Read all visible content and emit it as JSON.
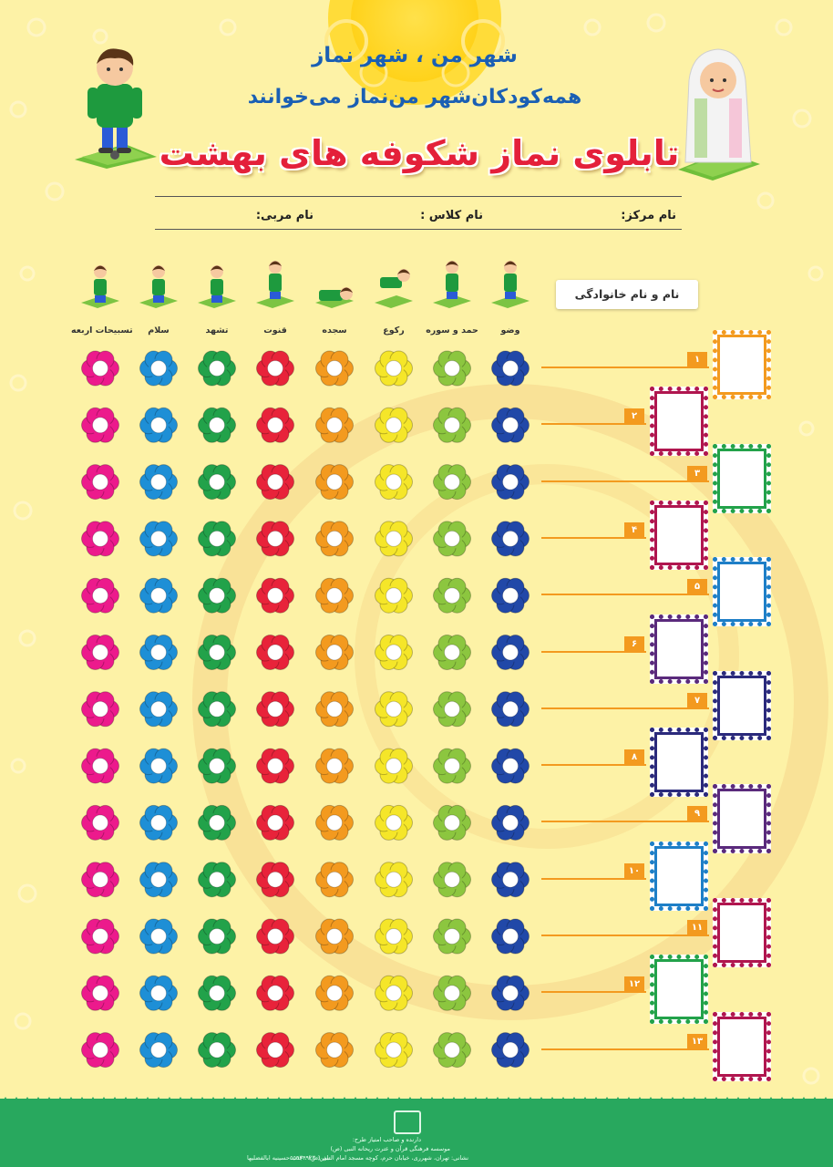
{
  "header": {
    "line1": "شهر من ، شهر نماز",
    "line2": "همه‌کودکان‌شهر من‌نماز می‌خوانند",
    "title": "تابلوی نماز شکوفه های بهشت"
  },
  "fields": {
    "center": "نام مرکز:",
    "class": "نام کلاس :",
    "teacher": "نام مربی:"
  },
  "name_column_header": "نام و نام خانوادگی",
  "prayer_steps": [
    "وضو",
    "حمد و سوره",
    "رکوع",
    "سجده",
    "قنوت",
    "تشهد",
    "سلام",
    "تسبیحات اربعه"
  ],
  "flower_colors": [
    "#2148a8",
    "#8cc63f",
    "#f5e629",
    "#f39a1f",
    "#e8233a",
    "#22a24a",
    "#1e8fd6",
    "#ec1a8c"
  ],
  "rows": [
    {
      "number": "۱",
      "frame_color": "#f39a1f"
    },
    {
      "number": "۲",
      "frame_color": "#b0164f"
    },
    {
      "number": "۳",
      "frame_color": "#22a24a"
    },
    {
      "number": "۴",
      "frame_color": "#b0164f"
    },
    {
      "number": "۵",
      "frame_color": "#1e7fc7"
    },
    {
      "number": "۶",
      "frame_color": "#5a2a7c"
    },
    {
      "number": "۷",
      "frame_color": "#2b2a7c"
    },
    {
      "number": "۸",
      "frame_color": "#2b2a7c"
    },
    {
      "number": "۹",
      "frame_color": "#5a2a7c"
    },
    {
      "number": "۱۰",
      "frame_color": "#1e7fc7"
    },
    {
      "number": "۱۱",
      "frame_color": "#b0164f"
    },
    {
      "number": "۱۲",
      "frame_color": "#22a24a"
    },
    {
      "number": "۱۳",
      "frame_color": "#b0164f"
    }
  ],
  "footer": {
    "line1": "دارنده و صاحب امتیاز طرح:",
    "line2": "موسسه فرهنگی قرآن و عترت ریحانه النبی (ص)",
    "line3": "نشانی: تهران، شهرری، خیابان حرم، کوچه مسجد امام النبی (ص) ، جنب حسینیه ابالفضلیها",
    "phone": "تلفن: ۵۵۹۳۴۹۲۳"
  }
}
